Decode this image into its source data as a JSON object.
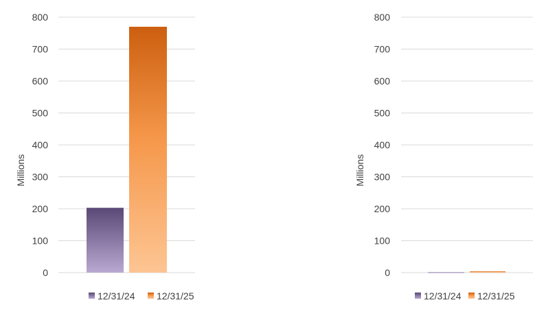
{
  "colors": {
    "series_1_top": "#5a4876",
    "series_1_bottom": "#b9a9d1",
    "series_2_top": "#cc5f0f",
    "series_2_mid": "#f5974a",
    "series_2_bottom": "#fdc593",
    "grid": "#d9d9d9",
    "text": "#404040"
  },
  "chart_data": [
    {
      "type": "bar",
      "categories": [
        ""
      ],
      "series": [
        {
          "name": "12/31/24",
          "values": [
            203
          ]
        },
        {
          "name": "12/31/25",
          "values": [
            770
          ]
        }
      ],
      "ylabel": "Millions",
      "ylim": [
        0,
        800
      ],
      "yticks": [
        0,
        100,
        200,
        300,
        400,
        500,
        600,
        700,
        800
      ],
      "grid": true,
      "legend": "bottom"
    },
    {
      "type": "bar",
      "categories": [
        ""
      ],
      "series": [
        {
          "name": "12/31/24",
          "values": [
            1
          ]
        },
        {
          "name": "12/31/25",
          "values": [
            4
          ]
        }
      ],
      "ylabel": "Millions",
      "ylim": [
        0,
        800
      ],
      "yticks": [
        0,
        100,
        200,
        300,
        400,
        500,
        600,
        700,
        800
      ],
      "grid": true,
      "legend": "bottom"
    }
  ]
}
